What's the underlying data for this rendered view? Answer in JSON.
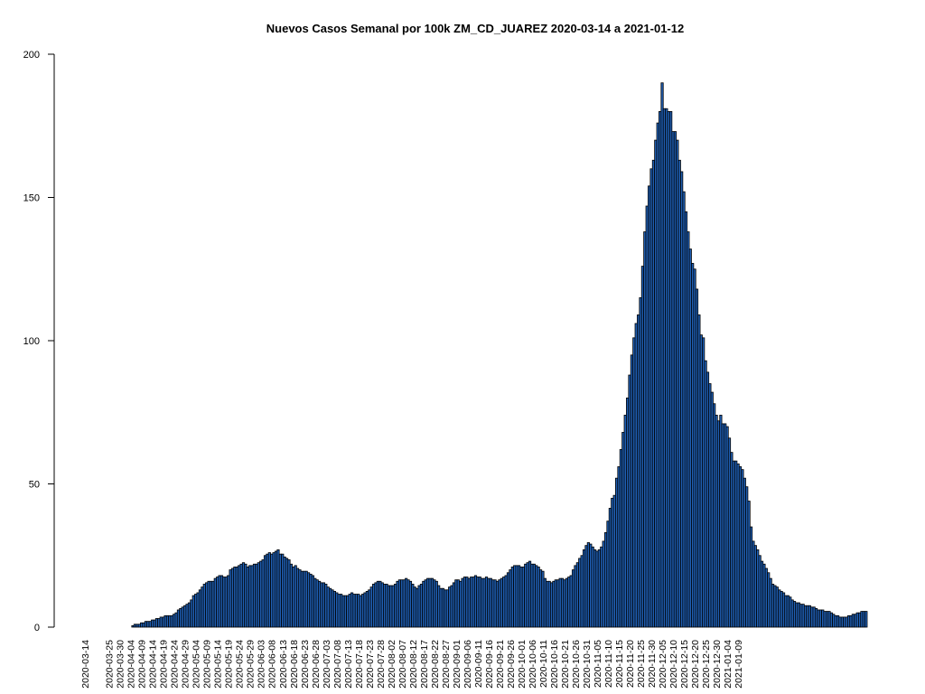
{
  "chart_data": {
    "type": "bar",
    "title": "Nuevos Casos Semanal por 100k ZM_CD_JUAREZ 2020-03-14 a 2021-01-12",
    "xlabel": "",
    "ylabel": "",
    "ylim": [
      0,
      200
    ],
    "yticks": [
      0,
      50,
      100,
      150,
      200
    ],
    "start_date": "2020-03-14",
    "end_date": "2021-01-12",
    "xtick_labels": [
      "2020-03-14",
      "2020-03-25",
      "2020-03-30",
      "2020-04-04",
      "2020-04-09",
      "2020-04-14",
      "2020-04-19",
      "2020-04-24",
      "2020-04-29",
      "2020-05-04",
      "2020-05-09",
      "2020-05-14",
      "2020-05-19",
      "2020-05-24",
      "2020-05-29",
      "2020-06-03",
      "2020-06-08",
      "2020-06-13",
      "2020-06-18",
      "2020-06-23",
      "2020-06-28",
      "2020-07-03",
      "2020-07-08",
      "2020-07-13",
      "2020-07-18",
      "2020-07-23",
      "2020-07-28",
      "2020-08-02",
      "2020-08-07",
      "2020-08-12",
      "2020-08-17",
      "2020-08-22",
      "2020-08-27",
      "2020-09-01",
      "2020-09-06",
      "2020-09-11",
      "2020-09-16",
      "2020-09-21",
      "2020-09-26",
      "2020-10-01",
      "2020-10-06",
      "2020-10-11",
      "2020-10-16",
      "2020-10-21",
      "2020-10-26",
      "2020-10-31",
      "2020-11-05",
      "2020-11-10",
      "2020-11-15",
      "2020-11-20",
      "2020-11-25",
      "2020-11-30",
      "2020-12-05",
      "2020-12-10",
      "2020-12-15",
      "2020-12-20",
      "2020-12-25",
      "2020-12-30",
      "2021-01-04",
      "2021-01-09"
    ],
    "values": [
      0,
      0,
      0,
      0,
      0,
      0,
      0,
      0,
      0,
      0,
      0,
      0,
      0,
      0,
      0,
      0,
      0,
      0,
      0,
      0,
      0,
      0,
      0.5,
      1,
      1,
      1,
      1.5,
      1.5,
      2,
      2,
      2,
      2.5,
      2.5,
      3,
      3,
      3.5,
      3.5,
      4,
      4,
      4,
      4,
      4.5,
      5,
      6,
      6.5,
      7,
      7.5,
      8,
      8.5,
      9.5,
      11,
      11.5,
      12,
      13,
      14,
      15,
      15.5,
      16,
      16,
      16,
      17,
      17.5,
      18,
      18,
      17.5,
      17.5,
      18,
      20,
      20.5,
      21,
      21,
      21.5,
      22,
      22.5,
      22,
      21,
      21.5,
      21.5,
      22,
      22,
      22.5,
      23,
      23.5,
      25,
      25.5,
      26,
      25.5,
      26,
      26.5,
      27,
      25.5,
      25.5,
      24.5,
      24,
      23.5,
      22,
      21,
      21.5,
      20.5,
      20,
      19.5,
      19.5,
      19.5,
      19,
      18.5,
      18,
      17,
      16.5,
      16,
      15.5,
      15.5,
      15,
      14,
      13.5,
      13,
      12.5,
      12,
      11.5,
      11.5,
      11,
      11,
      11,
      11.5,
      12,
      11.5,
      11.5,
      11.5,
      11,
      11.5,
      12,
      12.5,
      13,
      14,
      15,
      15.5,
      16,
      16,
      15.5,
      15,
      15,
      14.5,
      14.5,
      14.5,
      15,
      16,
      16.5,
      16.5,
      16.5,
      17,
      16.5,
      16,
      15,
      14,
      13.5,
      14.5,
      15,
      16,
      16.5,
      17,
      17,
      17,
      16.5,
      16,
      14.5,
      13.5,
      13.5,
      13,
      13,
      14,
      14.5,
      15.5,
      16.5,
      16.5,
      16,
      17,
      17.5,
      17.5,
      17,
      17.5,
      17.5,
      18,
      17.5,
      17.5,
      17,
      17,
      17.5,
      17,
      17,
      16.5,
      16.5,
      16,
      16.5,
      17,
      17.5,
      18,
      19,
      20,
      21,
      21.5,
      21.5,
      21.5,
      21,
      21,
      22,
      22.5,
      23,
      22,
      22,
      21.5,
      21,
      20,
      19.5,
      17,
      16,
      16,
      15.5,
      16,
      16.5,
      16.5,
      17,
      17,
      16.5,
      17,
      17.5,
      18,
      20,
      21.5,
      22.5,
      24,
      25,
      27,
      28.5,
      29.5,
      29,
      28,
      27,
      26.5,
      27,
      28,
      30,
      33,
      37,
      41.5,
      45,
      46,
      52,
      56,
      62,
      68,
      74,
      80,
      88,
      95,
      101,
      106,
      109,
      115,
      126,
      138,
      147,
      154,
      160,
      163,
      170,
      176,
      180,
      190,
      181,
      181,
      180,
      180,
      173,
      173,
      170,
      163,
      159,
      152,
      145,
      138,
      132,
      127,
      125,
      118,
      109,
      102,
      101,
      93,
      89,
      85,
      82,
      78,
      74,
      72,
      74,
      71,
      71,
      70,
      66,
      61,
      58,
      58,
      57,
      56,
      55,
      52,
      49,
      44,
      35,
      30,
      28.5,
      27,
      25,
      23,
      22,
      20.5,
      19,
      17,
      15,
      14.5,
      14,
      13,
      12.5,
      12,
      11,
      11,
      10.5,
      9.5,
      9,
      8.5,
      8.5,
      8,
      8,
      7.5,
      7.5,
      7.5,
      7,
      7,
      6.5,
      6,
      6,
      6,
      5.5,
      5.5,
      5.5,
      5,
      4.5,
      4,
      4,
      3.5,
      3.5,
      3.5,
      3.5,
      4,
      4,
      4.5,
      4.5,
      5,
      5,
      5.5,
      5.5,
      5.5
    ]
  },
  "style": {
    "bar_fill": "#1f5fb4",
    "bar_stroke": "#000000",
    "axis_color": "#000000",
    "background": "#ffffff"
  }
}
